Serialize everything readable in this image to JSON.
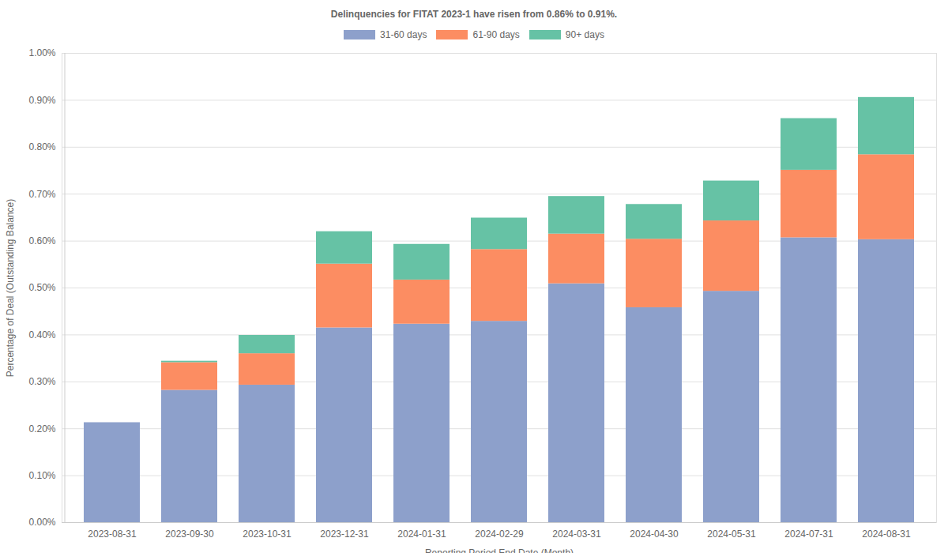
{
  "chart_data": {
    "type": "bar",
    "stacked": true,
    "grid": true,
    "legend": "top",
    "title": "Delinquencies for FITAT 2023-1 have risen from 0.86% to 0.91%.",
    "x_label": "Reporting Period End Date (Month)",
    "y_label": "Percentage of Deal (Outstanding Balance)",
    "categories": [
      "2023-08-31",
      "2023-09-30",
      "2023-10-31",
      "2023-12-31",
      "2024-01-31",
      "2024-02-29",
      "2024-03-31",
      "2024-04-30",
      "2024-05-31",
      "2024-07-31",
      "2024-08-31"
    ],
    "series": [
      {
        "name": "31-60 days",
        "color": "#8da0cb",
        "values": [
          0.213,
          0.282,
          0.293,
          0.415,
          0.423,
          0.429,
          0.509,
          0.458,
          0.493,
          0.607,
          0.603
        ]
      },
      {
        "name": "61-90 days",
        "color": "#fc8d62",
        "values": [
          0,
          0.059,
          0.067,
          0.136,
          0.094,
          0.153,
          0.106,
          0.146,
          0.15,
          0.144,
          0.181
        ]
      },
      {
        "name": "90+ days",
        "color": "#66c2a5",
        "values": [
          0,
          0.003,
          0.039,
          0.069,
          0.076,
          0.067,
          0.08,
          0.074,
          0.085,
          0.11,
          0.122
        ]
      }
    ],
    "ylim": [
      0,
      1
    ],
    "yticks": [
      {
        "value": 0,
        "label": "0.00%"
      },
      {
        "value": 0.1,
        "label": "0.10%"
      },
      {
        "value": 0.2,
        "label": "0.20%"
      },
      {
        "value": 0.3,
        "label": "0.30%"
      },
      {
        "value": 0.4,
        "label": "0.40%"
      },
      {
        "value": 0.5,
        "label": "0.50%"
      },
      {
        "value": 0.6,
        "label": "0.60%"
      },
      {
        "value": 0.7,
        "label": "0.70%"
      },
      {
        "value": 0.8,
        "label": "0.80%"
      },
      {
        "value": 0.9,
        "label": "0.90%"
      },
      {
        "value": 1,
        "label": "1.00%"
      }
    ]
  }
}
